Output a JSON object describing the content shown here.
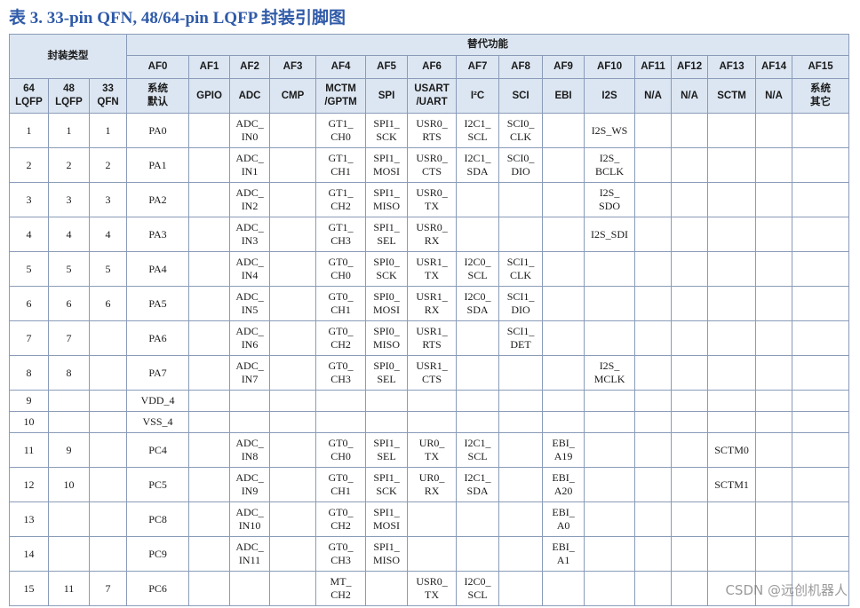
{
  "title": "表 3. 33-pin QFN, 48/64-pin LQFP 封装引脚图",
  "table": {
    "group_headers": [
      "封装类型",
      "替代功能"
    ],
    "af_headers": [
      "AF0",
      "AF1",
      "AF2",
      "AF3",
      "AF4",
      "AF5",
      "AF6",
      "AF7",
      "AF8",
      "AF9",
      "AF10",
      "AF11",
      "AF12",
      "AF13",
      "AF14",
      "AF15"
    ],
    "sub_headers": [
      "64\nLQFP",
      "48\nLQFP",
      "33\nQFN",
      "系统\n默认",
      "GPIO",
      "ADC",
      "CMP",
      "MCTM\n/GPTM",
      "SPI",
      "USART\n/UART",
      "I²C",
      "SCI",
      "EBI",
      "I2S",
      "N/A",
      "N/A",
      "SCTM",
      "N/A",
      "系统\n其它"
    ],
    "rows": [
      [
        "1",
        "1",
        "1",
        "PA0",
        null,
        "ADC_\nIN0",
        null,
        "GT1_\nCH0",
        "SPI1_\nSCK",
        "USR0_\nRTS",
        "I2C1_\nSCL",
        "SCI0_\nCLK",
        null,
        "I2S_WS",
        null,
        null,
        null,
        null,
        null
      ],
      [
        "2",
        "2",
        "2",
        "PA1",
        null,
        "ADC_\nIN1",
        null,
        "GT1_\nCH1",
        "SPI1_\nMOSI",
        "USR0_\nCTS",
        "I2C1_\nSDA",
        "SCI0_\nDIO",
        null,
        "I2S_\nBCLK",
        null,
        null,
        null,
        null,
        null
      ],
      [
        "3",
        "3",
        "3",
        "PA2",
        null,
        "ADC_\nIN2",
        null,
        "GT1_\nCH2",
        "SPI1_\nMISO",
        "USR0_\nTX",
        null,
        null,
        null,
        "I2S_\nSDO",
        null,
        null,
        null,
        null,
        null
      ],
      [
        "4",
        "4",
        "4",
        "PA3",
        null,
        "ADC_\nIN3",
        null,
        "GT1_\nCH3",
        "SPI1_\nSEL",
        "USR0_\nRX",
        null,
        null,
        null,
        "I2S_SDI",
        null,
        null,
        null,
        null,
        null
      ],
      [
        "5",
        "5",
        "5",
        "PA4",
        null,
        "ADC_\nIN4",
        null,
        "GT0_\nCH0",
        "SPI0_\nSCK",
        "USR1_\nTX",
        "I2C0_\nSCL",
        "SCI1_\nCLK",
        null,
        null,
        null,
        null,
        null,
        null,
        null
      ],
      [
        "6",
        "6",
        "6",
        "PA5",
        null,
        "ADC_\nIN5",
        null,
        "GT0_\nCH1",
        "SPI0_\nMOSI",
        "USR1_\nRX",
        "I2C0_\nSDA",
        "SCI1_\nDIO",
        null,
        null,
        null,
        null,
        null,
        null,
        null
      ],
      [
        "7",
        "7",
        null,
        "PA6",
        null,
        "ADC_\nIN6",
        null,
        "GT0_\nCH2",
        "SPI0_\nMISO",
        "USR1_\nRTS",
        null,
        "SCI1_\nDET",
        null,
        null,
        null,
        null,
        null,
        null,
        null
      ],
      [
        "8",
        "8",
        null,
        "PA7",
        null,
        "ADC_\nIN7",
        null,
        "GT0_\nCH3",
        "SPI0_\nSEL",
        "USR1_\nCTS",
        null,
        null,
        null,
        "I2S_\nMCLK",
        null,
        null,
        null,
        null,
        null
      ],
      [
        "9",
        null,
        null,
        "VDD_4",
        null,
        null,
        null,
        null,
        null,
        null,
        null,
        null,
        null,
        null,
        null,
        null,
        null,
        null,
        null
      ],
      [
        "10",
        null,
        null,
        "VSS_4",
        null,
        null,
        null,
        null,
        null,
        null,
        null,
        null,
        null,
        null,
        null,
        null,
        null,
        null,
        null
      ],
      [
        "11",
        "9",
        null,
        "PC4",
        null,
        "ADC_\nIN8",
        null,
        "GT0_\nCH0",
        "SPI1_\nSEL",
        "UR0_\nTX",
        "I2C1_\nSCL",
        null,
        "EBI_\nA19",
        null,
        null,
        null,
        "SCTM0",
        null,
        null
      ],
      [
        "12",
        "10",
        null,
        "PC5",
        null,
        "ADC_\nIN9",
        null,
        "GT0_\nCH1",
        "SPI1_\nSCK",
        "UR0_\nRX",
        "I2C1_\nSDA",
        null,
        "EBI_\nA20",
        null,
        null,
        null,
        "SCTM1",
        null,
        null
      ],
      [
        "13",
        null,
        null,
        "PC8",
        null,
        "ADC_\nIN10",
        null,
        "GT0_\nCH2",
        "SPI1_\nMOSI",
        null,
        null,
        null,
        "EBI_\nA0",
        null,
        null,
        null,
        null,
        null,
        null
      ],
      [
        "14",
        null,
        null,
        "PC9",
        null,
        "ADC_\nIN11",
        null,
        "GT0_\nCH3",
        "SPI1_\nMISO",
        null,
        null,
        null,
        "EBI_\nA1",
        null,
        null,
        null,
        null,
        null,
        null
      ],
      [
        "15",
        "11",
        "7",
        "PC6",
        null,
        null,
        null,
        "MT_\nCH2",
        null,
        "USR0_\nTX",
        "I2C0_\nSCL",
        null,
        null,
        null,
        null,
        null,
        null,
        null,
        null
      ]
    ]
  },
  "watermark": "CSDN @远创机器人"
}
